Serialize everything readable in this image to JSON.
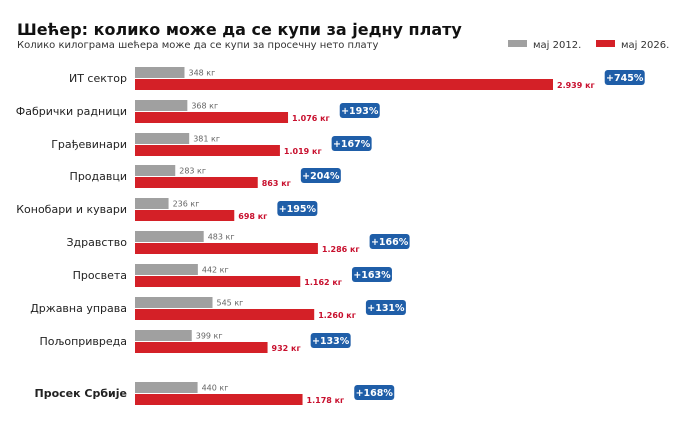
{
  "title": "Шећер: колико може да се купи за једну плату",
  "subtitle": "Колико килограма шећера може да се купи за просечну нето плату",
  "colors": {
    "y2012": "#a0a0a0",
    "y2026": "#d42027",
    "badge": "#1f5ea8",
    "label2012": "#666666",
    "label2026": "#c8102e"
  },
  "chart_data": {
    "type": "bar",
    "orientation": "horizontal",
    "unit": "кг",
    "categories": [
      "ИТ сектор",
      "Фабрички радници",
      "Грађевинари",
      "Продавци",
      "Конобари и кувари",
      "Здравство",
      "Просвета",
      "Државна управа",
      "Пољопривреда",
      "Просек Србије"
    ],
    "series": [
      {
        "name": "мај 2012.",
        "values": [
          348,
          368,
          381,
          283,
          236,
          483,
          442,
          545,
          399,
          440
        ],
        "labels": [
          "348 кг",
          "368 кг",
          "381 кг",
          "283 кг",
          "236 кг",
          "483 кг",
          "442 кг",
          "545 кг",
          "399 кг",
          "440 кг"
        ]
      },
      {
        "name": "мај 2026.",
        "values": [
          2939,
          1076,
          1019,
          863,
          698,
          1286,
          1162,
          1260,
          932,
          1178
        ],
        "labels": [
          "2.939 кг",
          "1.076 кг",
          "1.019 кг",
          "863 кг",
          "698 кг",
          "1.286 кг",
          "1.162 кг",
          "1.260 кг",
          "932 кг",
          "1.178 кг"
        ]
      }
    ],
    "change_labels": [
      "+745%",
      "+193%",
      "+167%",
      "+204%",
      "+195%",
      "+166%",
      "+163%",
      "+131%",
      "+133%",
      "+168%"
    ],
    "highlighted_category": "Просек Србије",
    "xlim": [
      0,
      3000
    ],
    "legend_position": "top-right",
    "grid": false
  }
}
